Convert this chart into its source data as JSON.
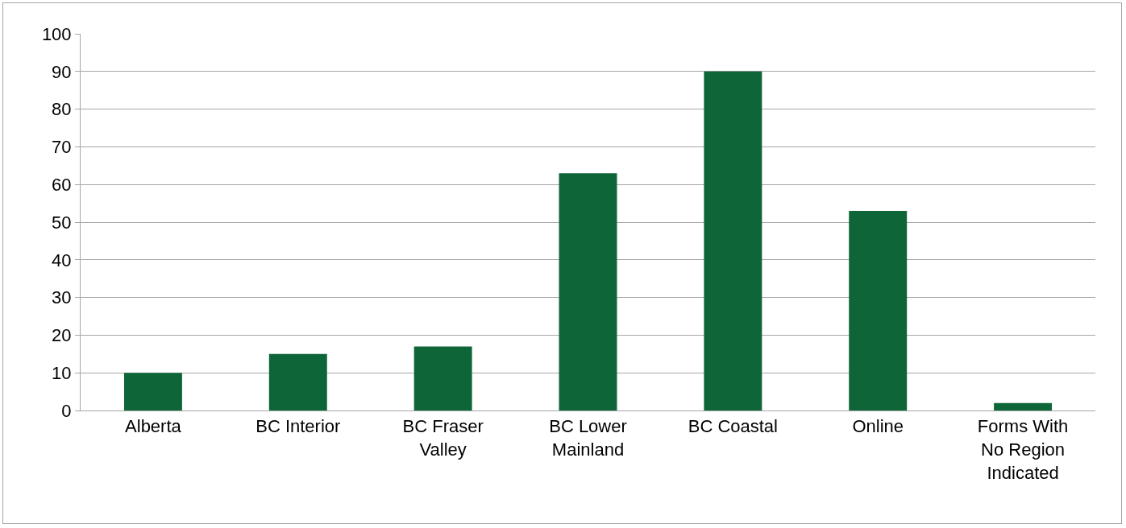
{
  "chart_data": {
    "type": "bar",
    "categories": [
      "Alberta",
      "BC Interior",
      "BC Fraser Valley",
      "BC Lower Mainland",
      "BC Coastal",
      "Online",
      "Forms With No Region Indicated"
    ],
    "values": [
      10,
      15,
      17,
      63,
      90,
      53,
      2
    ],
    "color": "#0e6638",
    "ylim": [
      0,
      100
    ],
    "yticks": [
      0,
      10,
      20,
      30,
      40,
      50,
      60,
      70,
      80,
      90,
      100
    ],
    "grid": "y",
    "legend": false
  }
}
